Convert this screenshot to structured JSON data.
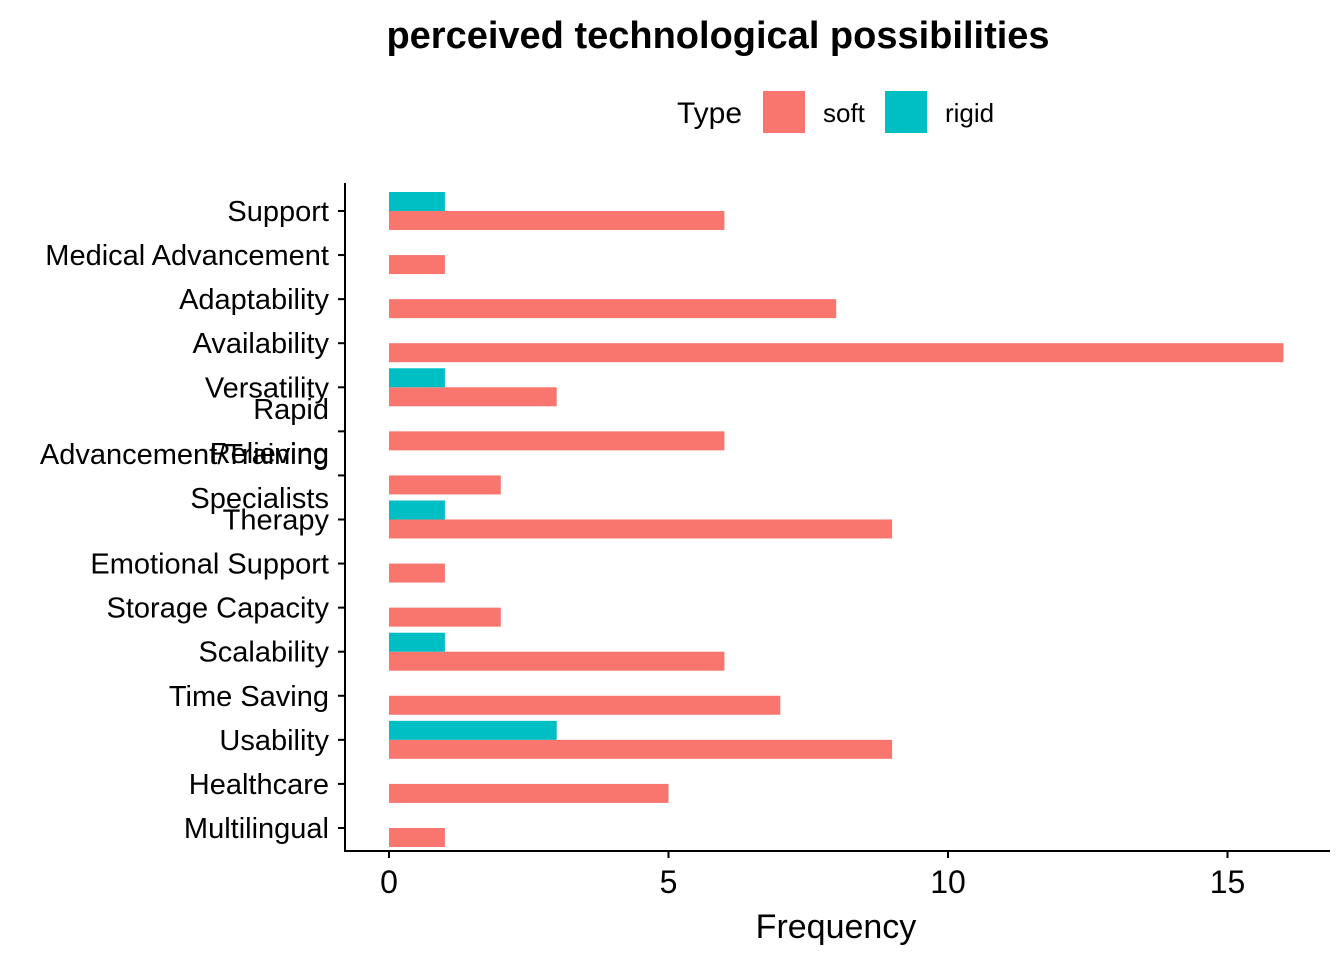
{
  "chart_data": {
    "type": "bar",
    "orientation": "horizontal",
    "title": "perceived technological possibilities",
    "xlabel": "Frequency",
    "ylabel": "",
    "xlim": [
      0,
      16.8
    ],
    "x_ticks": [
      0,
      5,
      10,
      15
    ],
    "grid": false,
    "legend": {
      "title": "Type",
      "position": "top"
    },
    "categories": [
      "Support",
      "Medical Advancement",
      "Adaptability",
      "Availability",
      "Versatility",
      "Rapid\nAdvancement/Training",
      "Relieving\nSpecialists",
      "Therapy",
      "Emotional Support",
      "Storage Capacity",
      "Scalability",
      "Time Saving",
      "Usability",
      "Healthcare",
      "Multilingual"
    ],
    "series": [
      {
        "name": "soft",
        "color": "#F8766D",
        "values": [
          6,
          1,
          8,
          16,
          3,
          6,
          2,
          9,
          1,
          2,
          6,
          7,
          9,
          5,
          1
        ]
      },
      {
        "name": "rigid",
        "color": "#00BFC4",
        "values": [
          1,
          0,
          0,
          0,
          1,
          0,
          0,
          1,
          0,
          0,
          1,
          0,
          3,
          0,
          0
        ]
      }
    ]
  }
}
